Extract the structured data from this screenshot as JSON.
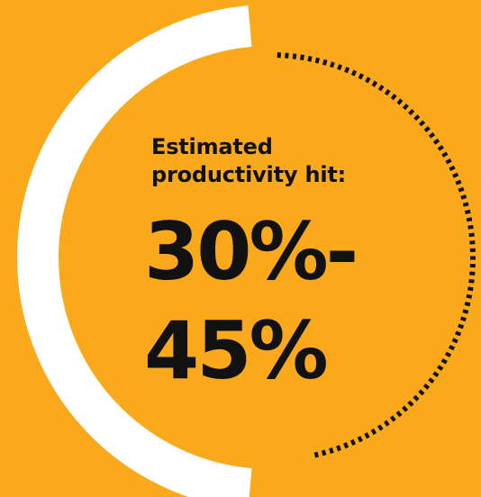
{
  "colors": {
    "background": "#F9A91B",
    "filled_arc": "#FFFFFF",
    "dotted_arc": "#111111",
    "text": "#111111"
  },
  "graphic": {
    "filled_arc_icon": "progress-arc-icon",
    "dotted_arc_icon": "dotted-arc-icon",
    "filled_share": 0.5
  },
  "heading": {
    "line1": "Estimated",
    "line2": "productivity hit:"
  },
  "value": {
    "line1": "30%-",
    "line2": "45%"
  }
}
